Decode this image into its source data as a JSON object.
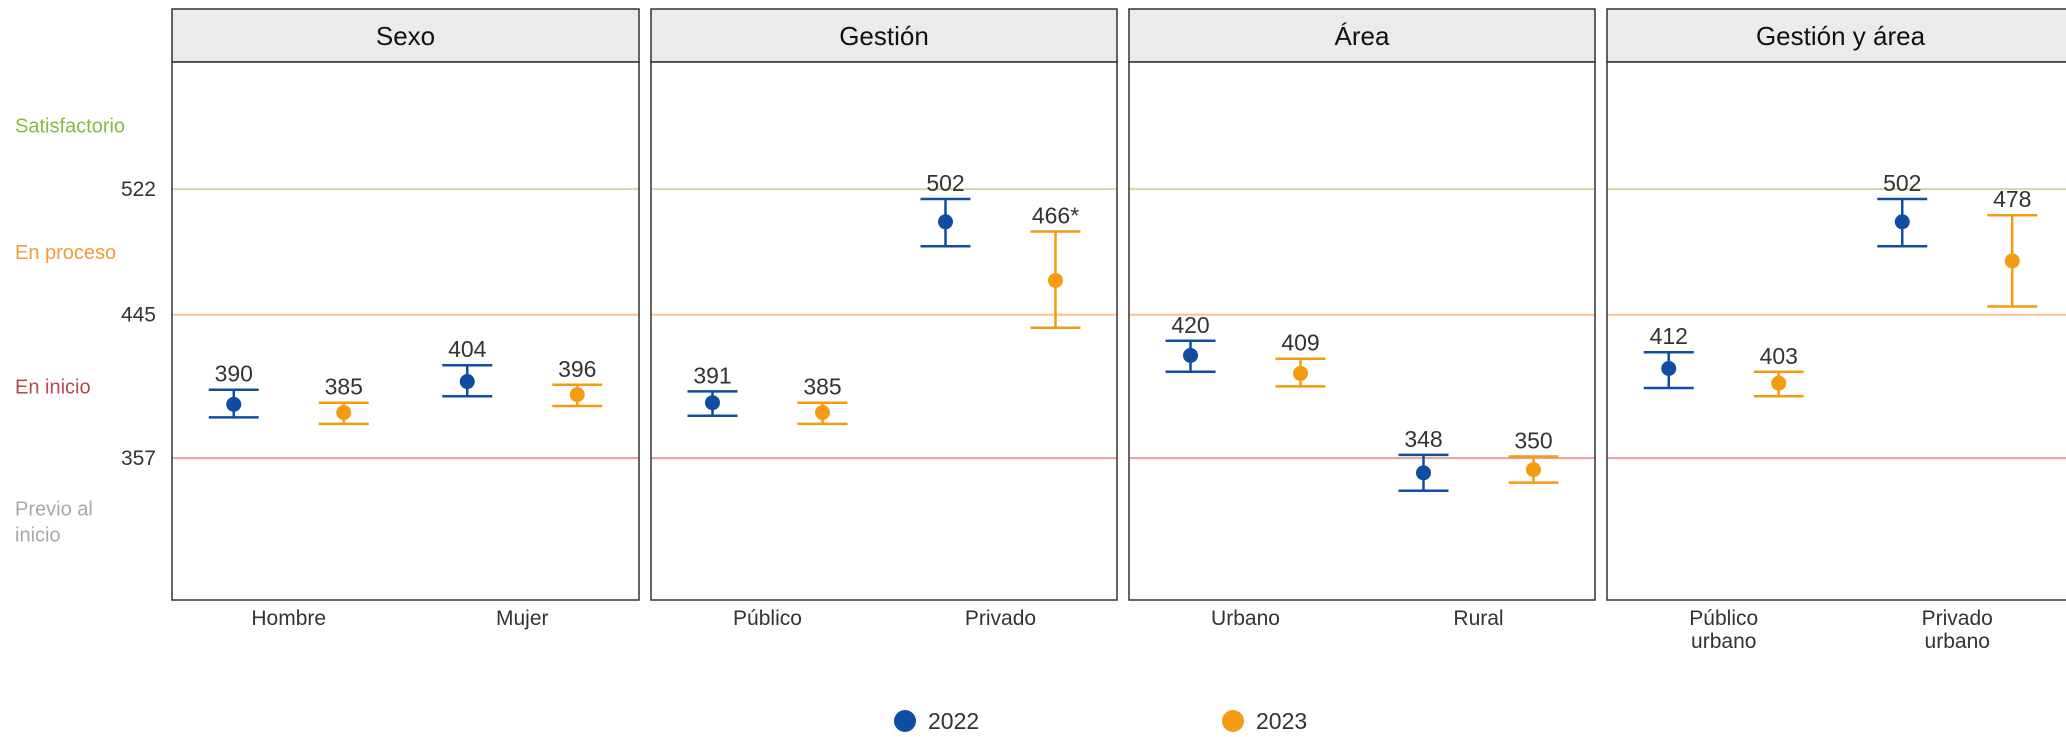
{
  "chart_data": {
    "type": "errorbar",
    "y_range": [
      270,
      600
    ],
    "levels": [
      {
        "label": "Satisfactorio",
        "mid": 561,
        "color": "#8DB843"
      },
      {
        "label": "En proceso",
        "mid": 483.5,
        "color": "#F39A3C"
      },
      {
        "label": "En inicio",
        "mid": 401,
        "color": "#B5494C"
      },
      {
        "label": "Previo al inicio",
        "lines": [
          "Previo al",
          "inicio"
        ],
        "mid": 318,
        "color": "#A8A8A8"
      }
    ],
    "cut_lines": [
      {
        "value": 522,
        "label": "522",
        "color": "#C8DEA5"
      },
      {
        "value": 445,
        "label": "445",
        "color": "#F8C48C"
      },
      {
        "value": 357,
        "label": "357",
        "color": "#E5A3A0"
      }
    ],
    "legend": [
      {
        "name": "2022",
        "color": "#0E4DA0"
      },
      {
        "name": "2023",
        "color": "#F39C12"
      }
    ],
    "panels": [
      {
        "title": "Sexo",
        "categories": [
          {
            "lines": [
              "Hombre"
            ],
            "points": [
              {
                "year": "2022",
                "value": 390,
                "lo": 382,
                "hi": 399,
                "label": "390"
              },
              {
                "year": "2023",
                "value": 385,
                "lo": 378,
                "hi": 391,
                "label": "385"
              }
            ]
          },
          {
            "lines": [
              "Mujer"
            ],
            "points": [
              {
                "year": "2022",
                "value": 404,
                "lo": 395,
                "hi": 414,
                "label": "404"
              },
              {
                "year": "2023",
                "value": 396,
                "lo": 389,
                "hi": 402,
                "label": "396"
              }
            ]
          }
        ]
      },
      {
        "title": "Gestión",
        "categories": [
          {
            "lines": [
              "Público"
            ],
            "points": [
              {
                "year": "2022",
                "value": 391,
                "lo": 383,
                "hi": 398,
                "label": "391"
              },
              {
                "year": "2023",
                "value": 385,
                "lo": 378,
                "hi": 391,
                "label": "385"
              }
            ]
          },
          {
            "lines": [
              "Privado"
            ],
            "points": [
              {
                "year": "2022",
                "value": 502,
                "lo": 487,
                "hi": 516,
                "label": "502"
              },
              {
                "year": "2023",
                "value": 466,
                "lo": 437,
                "hi": 496,
                "label": "466*"
              }
            ]
          }
        ]
      },
      {
        "title": "Área",
        "categories": [
          {
            "lines": [
              "Urbano"
            ],
            "points": [
              {
                "year": "2022",
                "value": 420,
                "lo": 410,
                "hi": 429,
                "label": "420"
              },
              {
                "year": "2023",
                "value": 409,
                "lo": 401,
                "hi": 418,
                "label": "409"
              }
            ]
          },
          {
            "lines": [
              "Rural"
            ],
            "points": [
              {
                "year": "2022",
                "value": 348,
                "lo": 337,
                "hi": 359,
                "label": "348"
              },
              {
                "year": "2023",
                "value": 350,
                "lo": 342,
                "hi": 358,
                "label": "350"
              }
            ]
          }
        ]
      },
      {
        "title": "Gestión y área",
        "categories": [
          {
            "lines": [
              "Público",
              "urbano"
            ],
            "points": [
              {
                "year": "2022",
                "value": 412,
                "lo": 400,
                "hi": 422,
                "label": "412"
              },
              {
                "year": "2023",
                "value": 403,
                "lo": 395,
                "hi": 410,
                "label": "403"
              }
            ]
          },
          {
            "lines": [
              "Privado",
              "urbano"
            ],
            "points": [
              {
                "year": "2022",
                "value": 502,
                "lo": 487,
                "hi": 516,
                "label": "502"
              },
              {
                "year": "2023",
                "value": 478,
                "lo": 450,
                "hi": 506,
                "label": "478"
              }
            ]
          }
        ]
      }
    ]
  }
}
